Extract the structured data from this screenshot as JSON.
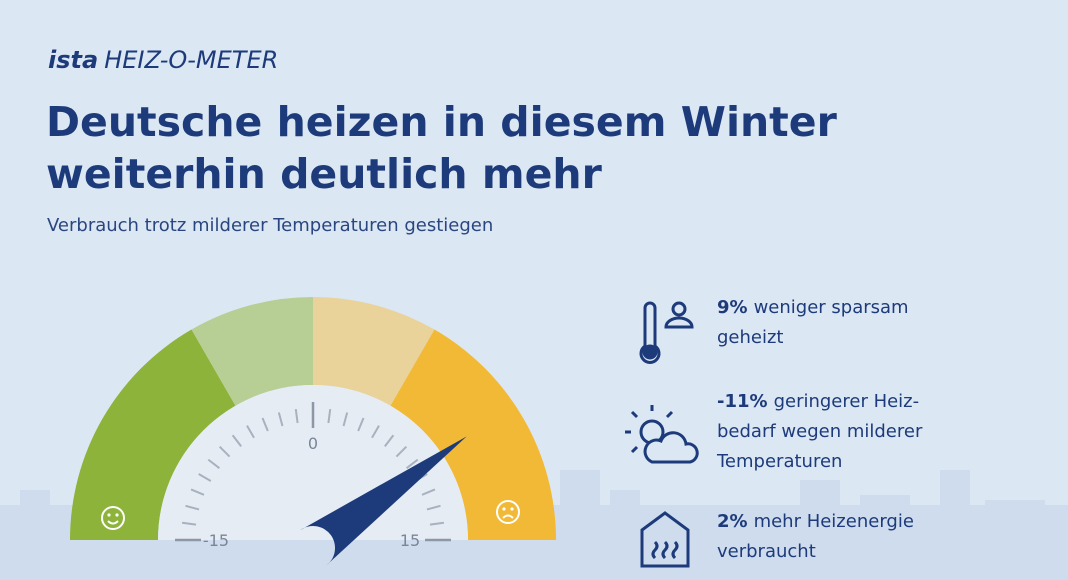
{
  "header": {
    "logo": "ista",
    "product": "HEIZ-O-METER",
    "title_lines": [
      "Deutsche heizen in diesem Winter",
      "weiterhin deutlich mehr"
    ],
    "subtitle": "Verbrauch trotz milderer Temperaturen gestiegen"
  },
  "gauge": {
    "range": [
      -15,
      15
    ],
    "ticks": [
      -15,
      0,
      15
    ],
    "value": 9
  },
  "items": [
    {
      "highlight": "9%",
      "lines": [
        "weniger sparsam",
        "geheizt"
      ]
    },
    {
      "highlight": "-11%",
      "lines": [
        "geringerer Heiz-",
        "bedarf wegen milderer",
        "Temperaturen"
      ]
    },
    {
      "highlight": "2%",
      "lines": [
        "mehr Heizenergie",
        "verbraucht"
      ]
    }
  ]
}
